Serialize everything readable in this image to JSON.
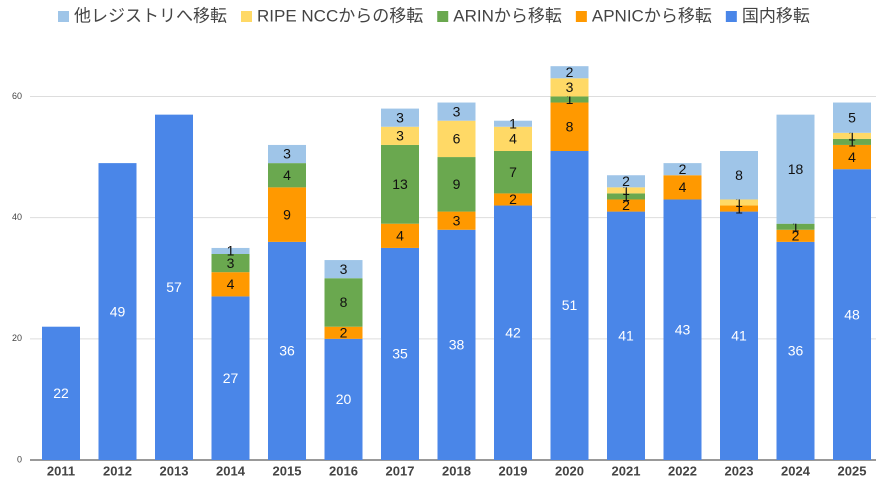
{
  "chart_data": {
    "type": "stacked_bar",
    "categories": [
      "2011",
      "2012",
      "2013",
      "2014",
      "2015",
      "2016",
      "2017",
      "2018",
      "2019",
      "2020",
      "2021",
      "2022",
      "2023",
      "2024",
      "2025"
    ],
    "series": [
      {
        "name": "国内移転",
        "color": "#4a86e8",
        "values": [
          22,
          49,
          57,
          27,
          36,
          20,
          35,
          38,
          42,
          51,
          41,
          43,
          41,
          36,
          48
        ]
      },
      {
        "name": "APNICから移転",
        "color": "#ff9900",
        "values": [
          null,
          null,
          null,
          4,
          9,
          2,
          4,
          3,
          2,
          8,
          2,
          4,
          1,
          2,
          4
        ]
      },
      {
        "name": "ARINから移転",
        "color": "#6aa84f",
        "values": [
          null,
          null,
          null,
          3,
          4,
          8,
          13,
          9,
          7,
          1,
          1,
          null,
          null,
          1,
          1
        ]
      },
      {
        "name": "RIPE NCCからの移転",
        "color": "#ffd966",
        "values": [
          null,
          null,
          null,
          null,
          null,
          null,
          3,
          6,
          4,
          3,
          1,
          null,
          1,
          null,
          1
        ]
      },
      {
        "name": "他レジストリへ移転",
        "color": "#9fc5e8",
        "values": [
          null,
          null,
          null,
          1,
          3,
          3,
          3,
          3,
          1,
          2,
          2,
          2,
          8,
          18,
          5
        ]
      }
    ],
    "ylim": [
      0,
      68
    ],
    "yticks": [
      0,
      20,
      40,
      60
    ],
    "grid": true
  }
}
